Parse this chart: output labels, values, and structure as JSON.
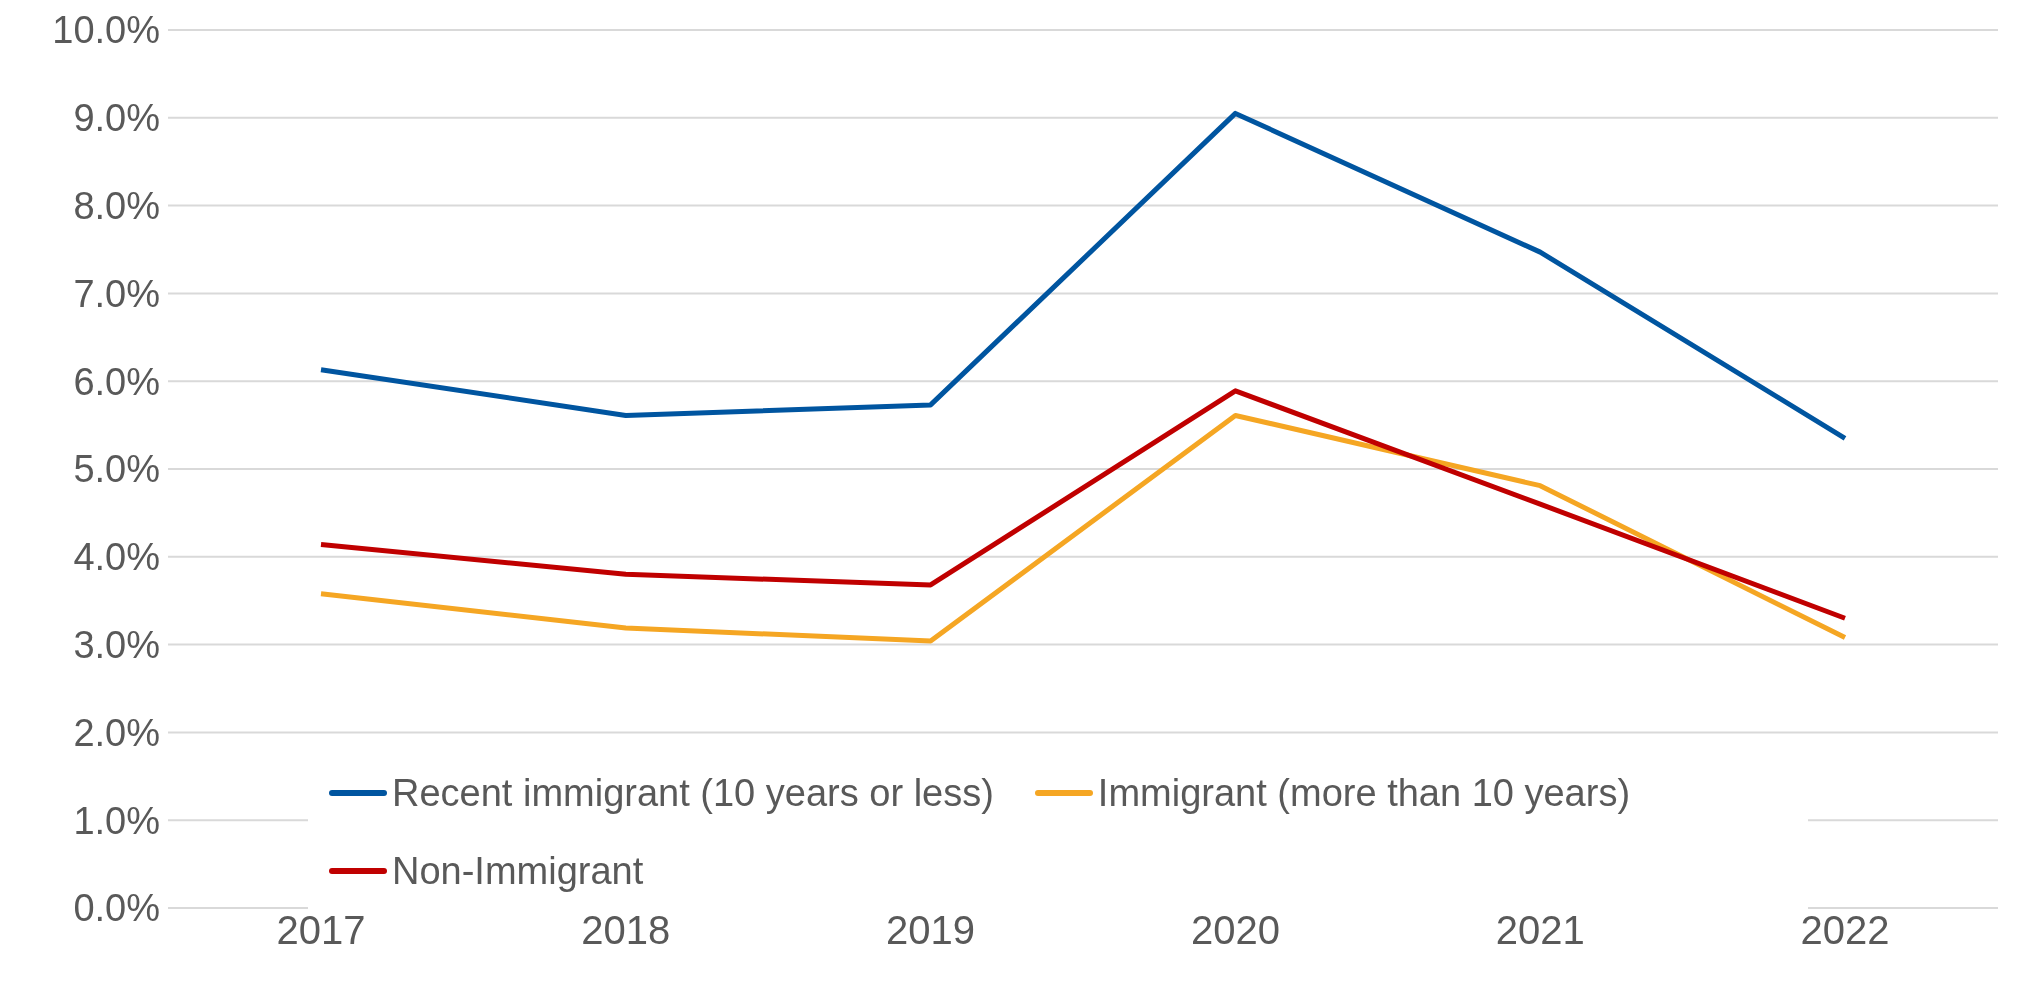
{
  "chart_data": {
    "type": "line",
    "categories": [
      "2017",
      "2018",
      "2019",
      "2020",
      "2021",
      "2022"
    ],
    "series": [
      {
        "name": "Recent immigrant (10 years or less)",
        "color": "#0055a0",
        "values": [
          6.13,
          5.61,
          5.73,
          9.05,
          7.47,
          5.35
        ]
      },
      {
        "name": "Immigrant (more than 10 years)",
        "color": "#f5a623",
        "values": [
          3.58,
          3.19,
          3.04,
          5.61,
          4.81,
          3.08
        ]
      },
      {
        "name": "Non-Immigrant",
        "color": "#c00000",
        "values": [
          4.14,
          3.8,
          3.68,
          5.89,
          4.6,
          3.3
        ]
      }
    ],
    "ylim": [
      0,
      10
    ],
    "yticks": [
      {
        "value": 0,
        "label": "0.0%"
      },
      {
        "value": 1,
        "label": "1.0%"
      },
      {
        "value": 2,
        "label": "2.0%"
      },
      {
        "value": 3,
        "label": "3.0%"
      },
      {
        "value": 4,
        "label": "4.0%"
      },
      {
        "value": 5,
        "label": "5.0%"
      },
      {
        "value": 6,
        "label": "6.0%"
      },
      {
        "value": 7,
        "label": "7.0%"
      },
      {
        "value": 8,
        "label": "8.0%"
      },
      {
        "value": 9,
        "label": "9.0%"
      },
      {
        "value": 10,
        "label": "10.0%"
      }
    ],
    "grid": "y",
    "legend": "bottom",
    "marker": "none",
    "line_style": "solid"
  }
}
